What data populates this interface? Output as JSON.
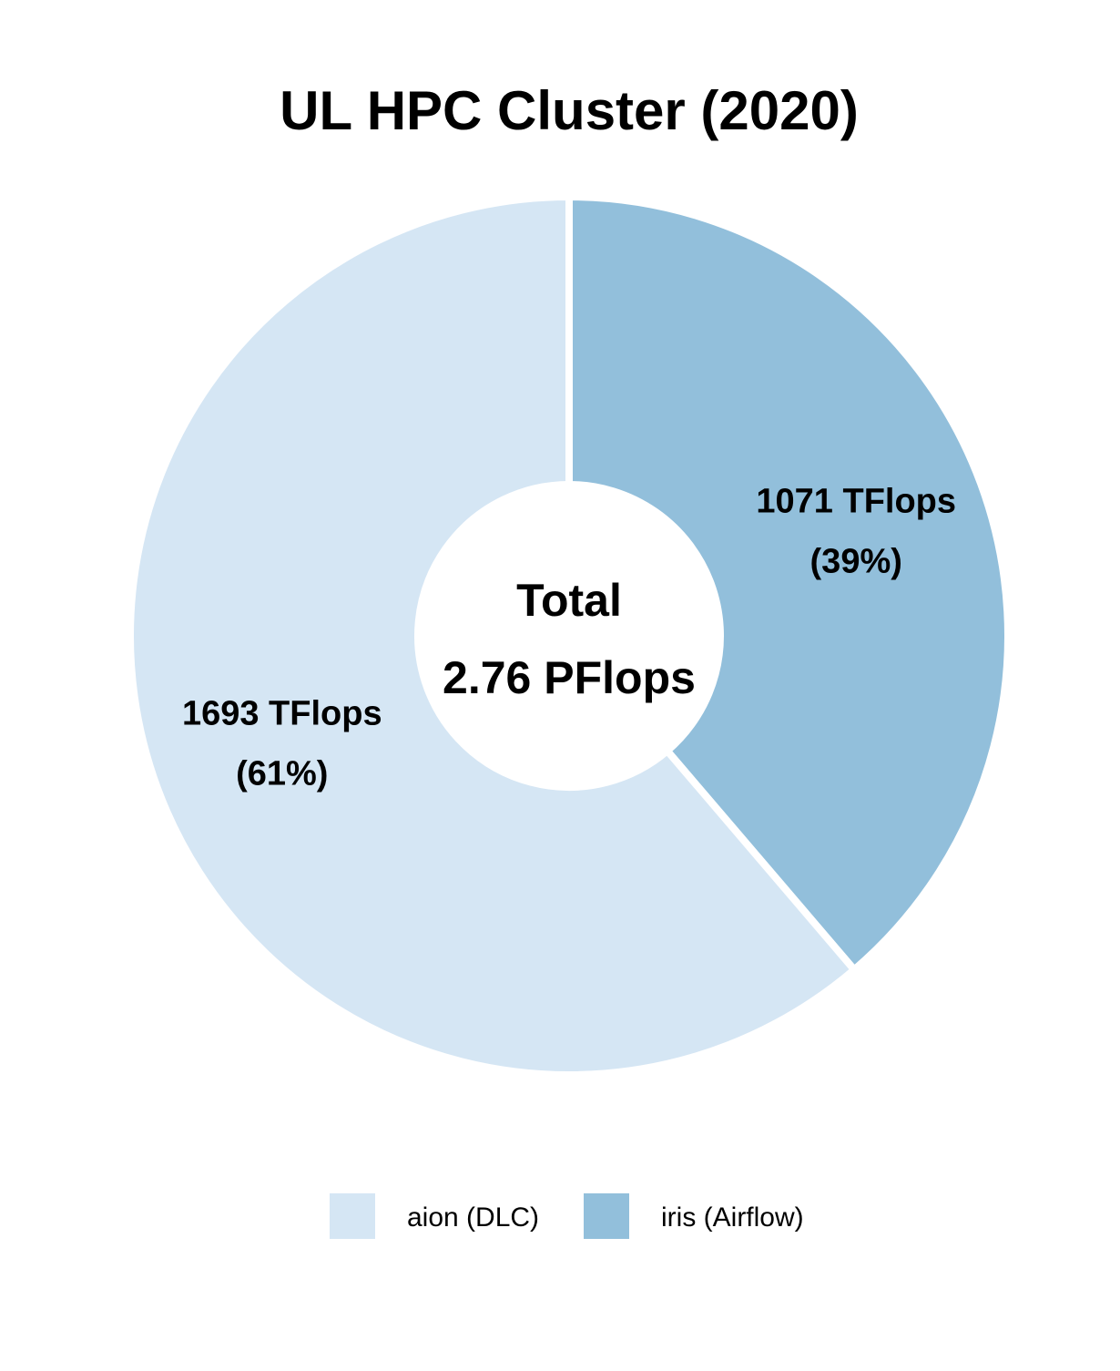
{
  "chart_data": {
    "type": "pie",
    "donut": true,
    "title": "UL HPC Cluster (2020)",
    "center_label": {
      "line1": "Total",
      "line2": "2.76 PFlops"
    },
    "unit": "TFlops",
    "categories": [
      "iris (Airflow)",
      "aion (DLC)"
    ],
    "values": [
      1071,
      1693
    ],
    "percent_labels": [
      "(39%)",
      "(61%)"
    ],
    "value_labels": [
      "1071 TFlops",
      "1693 TFlops"
    ],
    "colors": [
      "#92bfdb",
      "#d5e6f4"
    ],
    "start_angle": "12 o'clock",
    "direction": "clockwise",
    "legend": {
      "position": "bottom",
      "entries": [
        {
          "label": "aion (DLC)",
          "color": "#d5e6f4"
        },
        {
          "label": "iris (Airflow)",
          "color": "#92bfdb"
        }
      ]
    }
  }
}
